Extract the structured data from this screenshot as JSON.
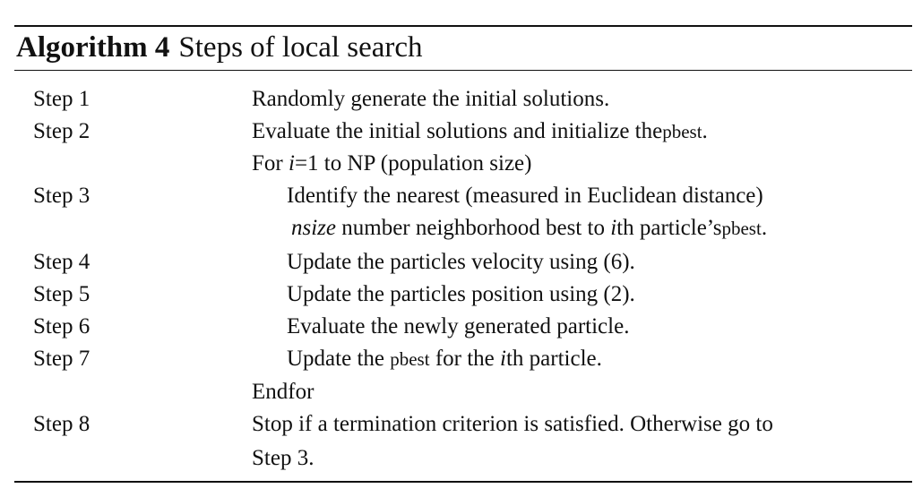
{
  "caption": {
    "label": "Algorithm 4",
    "title": "Steps of local search"
  },
  "rows": [
    {
      "step": "Step 1",
      "text": "Randomly generate the initial solutions."
    },
    {
      "step": "Step 2",
      "text_pre": "Evaluate the initial solutions and initialize the",
      "text_small": "pbest",
      "text_post": "."
    },
    {
      "step": "",
      "text_pre": "For ",
      "var": "i",
      "text_post": "=1 to NP (population size)"
    },
    {
      "step": "Step 3",
      "text": "Identify the nearest (measured in Euclidean distance)"
    },
    {
      "step": "",
      "var": "nsize",
      "text_mid": " number neighborhood best to ",
      "var2": "i",
      "text_post": "th particle’s",
      "text_small": "pbest",
      "text_end": "."
    },
    {
      "step": "Step 4",
      "text": "Update the particles velocity using (6)."
    },
    {
      "step": "Step 5",
      "text": "Update the particles position using (2)."
    },
    {
      "step": "Step 6",
      "text": "Evaluate the newly generated particle."
    },
    {
      "step": "Step 7",
      "text_pre": "Update the ",
      "text_small": "pbest",
      "text_mid": " for the ",
      "var": "i",
      "text_post": "th particle."
    },
    {
      "step": "",
      "text": "Endfor"
    },
    {
      "step": "Step 8",
      "text": "Stop if a termination criterion is satisfied. Otherwise go to"
    },
    {
      "step": "",
      "text": "Step 3."
    }
  ]
}
